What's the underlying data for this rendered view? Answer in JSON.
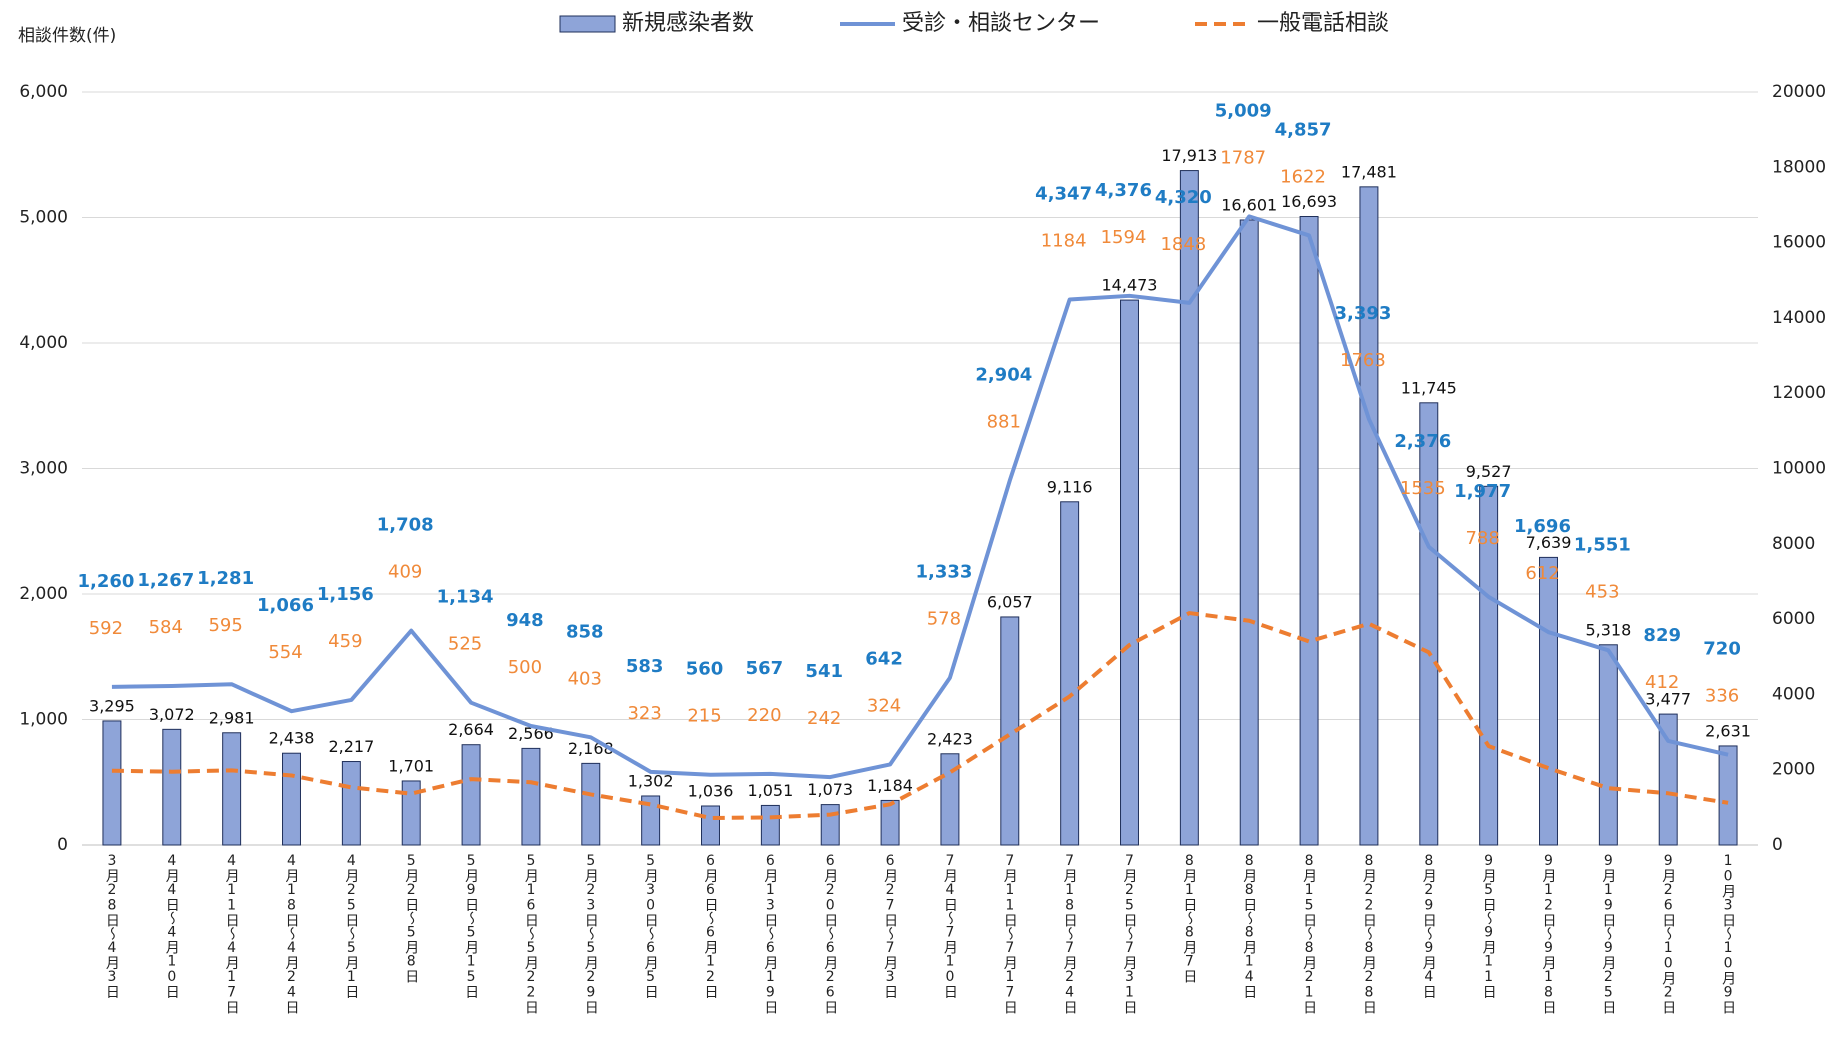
{
  "chart_data": {
    "type": "bar",
    "y_axis_label": "相談件数(件)",
    "categories": [
      "3月28日～4月3日",
      "4月4日～4月10日",
      "4月11日～4月17日",
      "4月18日～4月24日",
      "4月25日～5月1日",
      "5月2日～5月8日",
      "5月9日～5月15日",
      "5月16日～5月22日",
      "5月23日～5月29日",
      "5月30日～6月5日",
      "6月6日～6月12日",
      "6月13日～6月19日",
      "6月20日～6月26日",
      "6月27日～7月3日",
      "7月4日～7月10日",
      "7月11日～7月17日",
      "7月18日～7月24日",
      "7月25日～7月31日",
      "8月1日～8月7日",
      "8月8日～8月14日",
      "8月15日～8月21日",
      "8月22日～8月28日",
      "8月29日～9月4日",
      "9月5日～9月11日",
      "9月12日～9月18日",
      "9月19日～9月25日",
      "9月26日～10月2日",
      "10月3日～10月9日"
    ],
    "series": [
      {
        "name": "新規感染者数",
        "type": "bar",
        "axis": "y2",
        "color": "#8ea4d8",
        "values": [
          3295,
          3072,
          2981,
          2438,
          2217,
          1701,
          2664,
          2566,
          2168,
          1302,
          1036,
          1051,
          1073,
          1184,
          2423,
          6057,
          9116,
          14473,
          17913,
          16601,
          16693,
          17481,
          11745,
          9527,
          7639,
          5318,
          3477,
          2631
        ],
        "value_labels": [
          "3,295",
          "3,072",
          "2,981",
          "2,438",
          "2,217",
          "1,701",
          "2,664",
          "2,566",
          "2,168",
          "1,302",
          "1,036",
          "1,051",
          "1,073",
          "1,184",
          "2,423",
          "6,057",
          "9,116",
          "14,473",
          "17,913",
          "16,601",
          "16,693",
          "17,481",
          "11,745",
          "9,527",
          "7,639",
          "5,318",
          "3,477",
          "2,631"
        ]
      },
      {
        "name": "受診・相談センター",
        "type": "line",
        "color": "#6f93d6",
        "label_color": "#1f7cc4",
        "values": [
          1260,
          1267,
          1281,
          1066,
          1156,
          1708,
          1134,
          948,
          858,
          583,
          560,
          567,
          541,
          642,
          1333,
          2904,
          4347,
          4376,
          4320,
          5009,
          4857,
          3393,
          2376,
          1977,
          1696,
          1551,
          829,
          720
        ],
        "value_labels": [
          "1,260",
          "1,267",
          "1,281",
          "1,066",
          "1,156",
          "1,708",
          "1,134",
          "948",
          "858",
          "583",
          "560",
          "567",
          "541",
          "642",
          "1,333",
          "2,904",
          "4,347",
          "4,376",
          "4,320",
          "5,009",
          "4,857",
          "3,393",
          "2,376",
          "1,977",
          "1,696",
          "1,551",
          "829",
          "720"
        ]
      },
      {
        "name": "一般電話相談",
        "type": "line",
        "line_style": "dashed",
        "color": "#ed7d31",
        "label_color": "#f08a3a",
        "values": [
          592,
          584,
          595,
          554,
          459,
          409,
          525,
          500,
          403,
          323,
          215,
          220,
          242,
          324,
          578,
          881,
          1184,
          1594,
          1848,
          1787,
          1622,
          1763,
          1535,
          788,
          612,
          453,
          412,
          336
        ]
      }
    ],
    "ylim": [
      0,
      6000
    ],
    "yticks": [
      0,
      {
        "value": 1000,
        "label": "1,000"
      },
      {
        "value": 2000,
        "label": "2,000"
      },
      {
        "value": 3000,
        "label": "3,000"
      },
      {
        "value": 4000,
        "label": "4,000"
      },
      {
        "value": 5000,
        "label": "5,000"
      },
      {
        "value": 6000,
        "label": "6,000"
      }
    ],
    "y2lim": [
      0,
      20000
    ],
    "y2ticks": [
      0,
      2000,
      4000,
      6000,
      8000,
      10000,
      12000,
      14000,
      16000,
      18000,
      20000
    ],
    "grid": true
  }
}
